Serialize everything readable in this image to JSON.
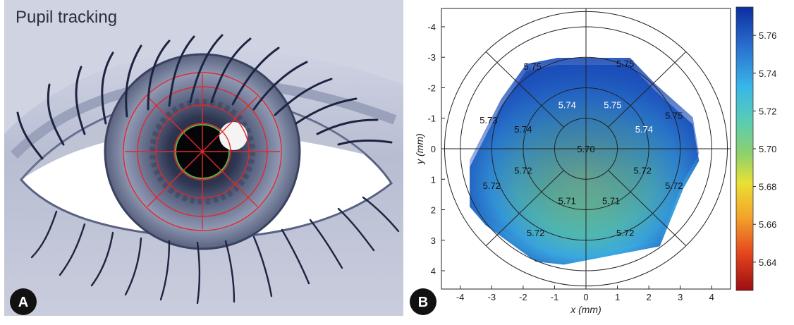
{
  "panel_a": {
    "title": "Pupil tracking",
    "badge": "A"
  },
  "panel_b": {
    "badge": "B"
  },
  "chart_data": {
    "type": "heatmap",
    "xlabel": "x (mm)",
    "ylabel": "y (mm)",
    "xlim": [
      -4.6,
      4.6
    ],
    "ylim_top_to_bottom": [
      -4.6,
      4.6
    ],
    "x_ticks": [
      "-4",
      "-3",
      "-2",
      "-1",
      "0",
      "1",
      "2",
      "3",
      "4"
    ],
    "y_ticks": [
      "-4",
      "-3",
      "-2",
      "-1",
      "0",
      "1",
      "2",
      "3",
      "4"
    ],
    "rings_radius_mm": [
      1,
      2,
      3,
      4,
      4.5
    ],
    "colorbar": {
      "min": 5.625,
      "max": 5.775,
      "ticks": [
        "5.76",
        "5.74",
        "5.72",
        "5.70",
        "5.68",
        "5.66",
        "5.64"
      ],
      "colors": [
        "#0d2ea0",
        "#2a6fd0",
        "#38b6e8",
        "#58ccb5",
        "#8ed16b",
        "#e9e034",
        "#f3a52a",
        "#e4451f",
        "#9c0d12"
      ]
    },
    "segments": [
      {
        "label": "5.70",
        "x": 0.0,
        "y": 0.0
      },
      {
        "label": "5.74",
        "x": -2.0,
        "y": -0.65
      },
      {
        "label": "5.72",
        "x": -2.0,
        "y": 0.7
      },
      {
        "label": "5.71",
        "x": -0.6,
        "y": 1.7
      },
      {
        "label": "5.71",
        "x": 0.8,
        "y": 1.7
      },
      {
        "label": "5.72",
        "x": 1.8,
        "y": 0.7
      },
      {
        "label": "5.74",
        "x": 1.85,
        "y": -0.65
      },
      {
        "label": "5.75",
        "x": 0.85,
        "y": -1.45
      },
      {
        "label": "5.74",
        "x": -0.6,
        "y": -1.45
      },
      {
        "label": "5.73",
        "x": -3.1,
        "y": -0.95
      },
      {
        "label": "5.72",
        "x": -3.0,
        "y": 1.2
      },
      {
        "label": "5.72",
        "x": -1.6,
        "y": 2.75
      },
      {
        "label": "5.72",
        "x": 1.25,
        "y": 2.75
      },
      {
        "label": "5.72",
        "x": 2.8,
        "y": 1.2
      },
      {
        "label": "5.75",
        "x": 2.8,
        "y": -1.1
      },
      {
        "label": "5.75",
        "x": -1.7,
        "y": -2.7
      },
      {
        "label": "5.75",
        "x": 1.25,
        "y": -2.8
      }
    ]
  }
}
